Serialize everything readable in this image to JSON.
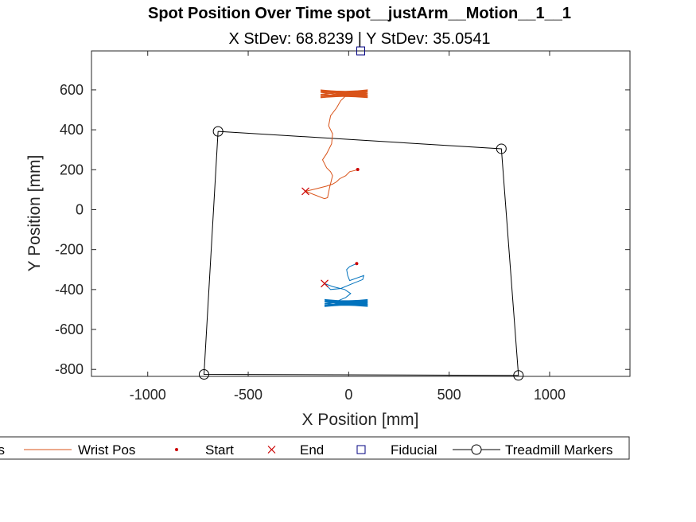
{
  "chart_data": {
    "type": "line",
    "title": "Spot Position Over Time spot__justArm__Motion__1__1",
    "subtitle": "X StDev: 68.8239  |  Y StDev: 35.0541",
    "xlabel": "X Position [mm]",
    "ylabel": "Y Position [mm]",
    "xlim": [
      -1280,
      1400
    ],
    "ylim": [
      -835,
      795
    ],
    "xticks": [
      -1000,
      -500,
      0,
      500,
      1000
    ],
    "yticks": [
      -800,
      -600,
      -400,
      -200,
      0,
      200,
      400,
      600
    ],
    "grid": false,
    "legend": {
      "placement": "bottom",
      "entries": [
        {
          "label": "Body Pos",
          "visible_text": "os",
          "style": "line",
          "color": "#0072BD"
        },
        {
          "label": "Wrist Pos",
          "style": "line",
          "color": "#D95319"
        },
        {
          "label": "Start",
          "style": "dot",
          "color": "#CC0000"
        },
        {
          "label": "End",
          "style": "x",
          "color": "#CC0000"
        },
        {
          "label": "Fiducial",
          "style": "square",
          "color": "#000080"
        },
        {
          "label": "Treadmill Markers",
          "style": "line-circle",
          "color": "#000000"
        }
      ]
    },
    "series": [
      {
        "name": "Wrist Pos",
        "color": "#D95319",
        "points": [
          [
            45,
            201
          ],
          [
            30,
            196
          ],
          [
            5,
            190
          ],
          [
            -15,
            170
          ],
          [
            -45,
            155
          ],
          [
            -60,
            140
          ],
          [
            -80,
            128
          ],
          [
            -110,
            118
          ],
          [
            -160,
            105
          ],
          [
            -210,
            93
          ],
          [
            -215,
            92
          ],
          [
            -120,
            55
          ],
          [
            -105,
            60
          ],
          [
            -95,
            110
          ],
          [
            -80,
            170
          ],
          [
            -90,
            190
          ],
          [
            -110,
            210
          ],
          [
            -130,
            250
          ],
          [
            -110,
            280
          ],
          [
            -85,
            330
          ],
          [
            -80,
            380
          ],
          [
            -100,
            420
          ],
          [
            -90,
            470
          ],
          [
            -60,
            510
          ],
          [
            -40,
            545
          ],
          [
            -15,
            570
          ]
        ],
        "oscillation": {
          "x_range": [
            -140,
            95
          ],
          "y_range": [
            560,
            600
          ],
          "label": "dense back-and-forth"
        }
      },
      {
        "name": "Body Pos",
        "color": "#0072BD",
        "points": [
          [
            40,
            -270
          ],
          [
            5,
            -285
          ],
          [
            -10,
            -300
          ],
          [
            -5,
            -330
          ],
          [
            5,
            -355
          ],
          [
            75,
            -330
          ],
          [
            70,
            -350
          ],
          [
            20,
            -370
          ],
          [
            -40,
            -395
          ],
          [
            -90,
            -400
          ],
          [
            -120,
            -370
          ],
          [
            -80,
            -385
          ],
          [
            -20,
            -400
          ],
          [
            10,
            -420
          ],
          [
            -15,
            -440
          ],
          [
            -50,
            -455
          ]
        ],
        "oscillation": {
          "x_range": [
            -120,
            95
          ],
          "y_range": [
            -485,
            -450
          ],
          "label": "dense back-and-forth"
        }
      }
    ],
    "start_markers": [
      [
        45,
        201
      ],
      [
        40,
        -270
      ]
    ],
    "end_markers": [
      [
        -215,
        92
      ],
      [
        -120,
        -370
      ]
    ],
    "fiducial": [
      60,
      795
    ],
    "treadmill_markers": [
      [
        -650,
        392
      ],
      [
        760,
        305
      ],
      [
        845,
        -830
      ],
      [
        -720,
        -825
      ],
      [
        -650,
        392
      ]
    ]
  }
}
